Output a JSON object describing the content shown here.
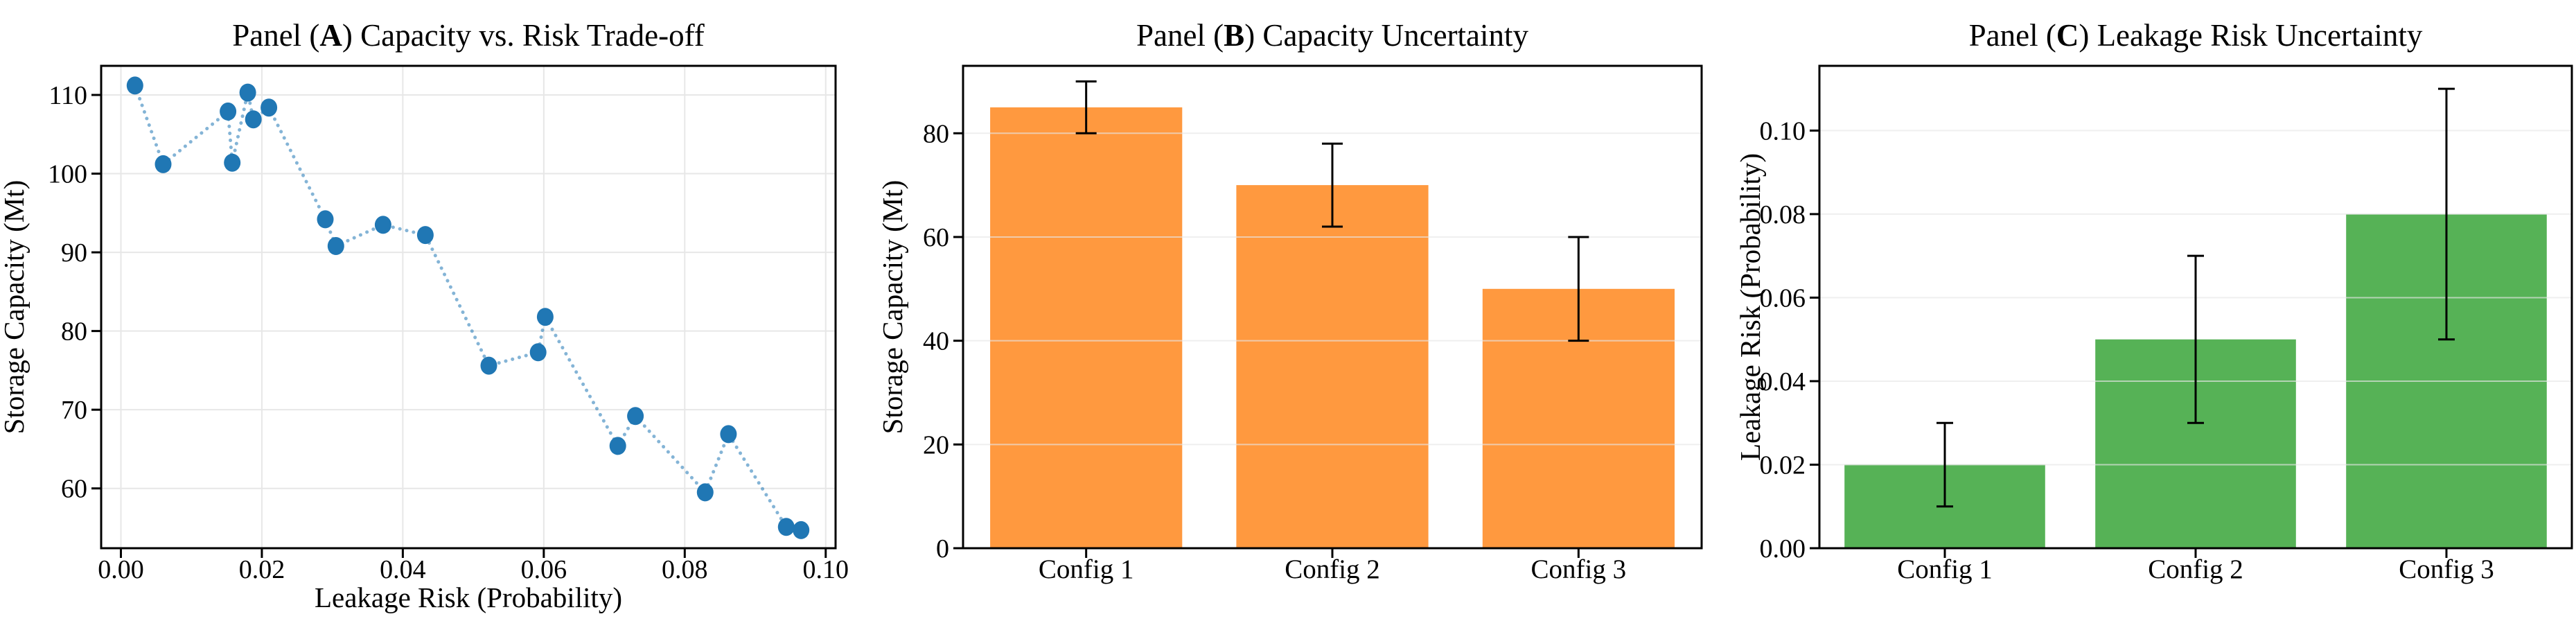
{
  "figure": {
    "background": "#FFFFFF",
    "spine_color": "#000000",
    "grid_color": "#E7E7E7",
    "text_color": "#000000"
  },
  "chart_data": [
    {
      "id": "panel-a",
      "type": "scatter",
      "title": "Panel (A) Capacity vs. Risk Trade-off",
      "xlabel": "Leakage Risk (Probability)",
      "ylabel": "Storage Capacity (Mt)",
      "xlim": [
        -0.0028,
        0.1014
      ],
      "ylim": [
        52.4,
        113.7
      ],
      "xticks": [
        0,
        0.02,
        0.04,
        0.06,
        0.08,
        0.1
      ],
      "xtick_labels": [
        "0.00",
        "0.02",
        "0.04",
        "0.06",
        "0.08",
        "0.10"
      ],
      "yticks": [
        60,
        70,
        80,
        90,
        100,
        110
      ],
      "ytick_labels": [
        "60",
        "70",
        "80",
        "90",
        "100",
        "110"
      ],
      "grid": "both",
      "legend": "none",
      "marker_color": "#2077B4",
      "line_color": "#1F77B4",
      "line_opacity": 0.55,
      "line_style": "dotted",
      "points": [
        [
          0.002,
          111.2
        ],
        [
          0.006,
          101.2
        ],
        [
          0.0152,
          107.9
        ],
        [
          0.0158,
          101.4
        ],
        [
          0.018,
          110.3
        ],
        [
          0.0188,
          106.9
        ],
        [
          0.021,
          108.4
        ],
        [
          0.029,
          94.2
        ],
        [
          0.0305,
          90.8
        ],
        [
          0.0372,
          93.5
        ],
        [
          0.0432,
          92.2
        ],
        [
          0.0522,
          75.6
        ],
        [
          0.0592,
          77.3
        ],
        [
          0.0602,
          81.8
        ],
        [
          0.0705,
          65.4
        ],
        [
          0.073,
          69.2
        ],
        [
          0.0829,
          59.5
        ],
        [
          0.0862,
          66.9
        ],
        [
          0.0944,
          55.1
        ],
        [
          0.0965,
          54.7
        ]
      ]
    },
    {
      "id": "panel-b",
      "type": "bar",
      "title": "Panel (B) Capacity Uncertainty",
      "xlabel": "",
      "ylabel": "Storage Capacity (Mt)",
      "categories": [
        "Config 1",
        "Config 2",
        "Config 3"
      ],
      "values": [
        85,
        70,
        50
      ],
      "errors": [
        5,
        8,
        10
      ],
      "ylim": [
        0,
        93
      ],
      "yticks": [
        0,
        20,
        40,
        60,
        80
      ],
      "ytick_labels": [
        "0",
        "20",
        "40",
        "60",
        "80"
      ],
      "grid": "horizontal",
      "legend": "none",
      "bar_color": "#FF993F",
      "error_color": "#000000"
    },
    {
      "id": "panel-c",
      "type": "bar",
      "title": "Panel (C) Leakage Risk Uncertainty",
      "xlabel": "",
      "ylabel": "Leakage Risk (Probability)",
      "categories": [
        "Config 1",
        "Config 2",
        "Config 3"
      ],
      "values": [
        0.02,
        0.05,
        0.08
      ],
      "errors": [
        0.01,
        0.02,
        0.03
      ],
      "ylim": [
        0,
        0.1155
      ],
      "yticks": [
        0,
        0.02,
        0.04,
        0.06,
        0.08,
        0.1
      ],
      "ytick_labels": [
        "0.00",
        "0.02",
        "0.04",
        "0.06",
        "0.08",
        "0.10"
      ],
      "grid": "horizontal",
      "legend": "none",
      "bar_color": "#56B256",
      "error_color": "#000000"
    }
  ]
}
